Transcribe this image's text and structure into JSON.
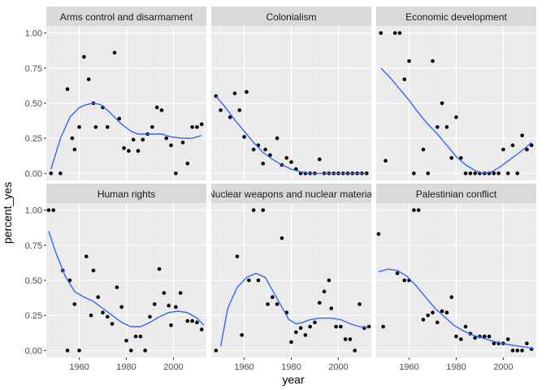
{
  "chart_data": {
    "type": "scatter",
    "xlabel": "year",
    "ylabel": "percent_yes",
    "xlim": [
      1946,
      2014
    ],
    "ylim": [
      -0.05,
      1.05
    ],
    "x_ticks": [
      1960,
      1980,
      2000
    ],
    "x_tick_labels": [
      "1960",
      "1980",
      "2000"
    ],
    "y_ticks": [
      0,
      0.25,
      0.5,
      0.75,
      1
    ],
    "y_tick_labels": [
      "0.00",
      "0.25",
      "0.50",
      "0.75",
      "1.00"
    ],
    "grid": true,
    "layout": {
      "columns": 3,
      "rows": 2
    },
    "colors": {
      "panel_bg": "#ebebeb",
      "strip_bg": "#d9d9d9",
      "grid_major": "#ffffff",
      "grid_minor": "#f3f3f3",
      "point": "#000000",
      "smooth_line": "#3366ff",
      "tick_text": "#4d4d4d"
    },
    "panels": [
      {
        "name": "Arms control and disarmament",
        "points": [
          [
            1948,
            0.0
          ],
          [
            1952,
            0.0
          ],
          [
            1955,
            0.6
          ],
          [
            1957,
            0.25
          ],
          [
            1958,
            0.17
          ],
          [
            1960,
            0.33
          ],
          [
            1962,
            0.83
          ],
          [
            1964,
            0.67
          ],
          [
            1966,
            0.5
          ],
          [
            1967,
            0.33
          ],
          [
            1970,
            0.47
          ],
          [
            1972,
            0.33
          ],
          [
            1975,
            0.86
          ],
          [
            1977,
            0.39
          ],
          [
            1979,
            0.18
          ],
          [
            1981,
            0.16
          ],
          [
            1983,
            0.24
          ],
          [
            1985,
            0.16
          ],
          [
            1987,
            0.24
          ],
          [
            1989,
            0.28
          ],
          [
            1991,
            0.33
          ],
          [
            1993,
            0.47
          ],
          [
            1995,
            0.45
          ],
          [
            1997,
            0.25
          ],
          [
            1999,
            0.2
          ],
          [
            2001,
            0.0
          ],
          [
            2004,
            0.22
          ],
          [
            2006,
            0.07
          ],
          [
            2008,
            0.33
          ],
          [
            2010,
            0.33
          ],
          [
            2012,
            0.35
          ]
        ],
        "smooth": [
          [
            1948,
            0.03
          ],
          [
            1952,
            0.25
          ],
          [
            1956,
            0.4
          ],
          [
            1960,
            0.47
          ],
          [
            1963,
            0.49
          ],
          [
            1966,
            0.5
          ],
          [
            1969,
            0.49
          ],
          [
            1972,
            0.45
          ],
          [
            1975,
            0.4
          ],
          [
            1978,
            0.35
          ],
          [
            1982,
            0.3
          ],
          [
            1985,
            0.28
          ],
          [
            1990,
            0.28
          ],
          [
            1995,
            0.28
          ],
          [
            1999,
            0.26
          ],
          [
            2004,
            0.25
          ],
          [
            2008,
            0.25
          ],
          [
            2012,
            0.27
          ]
        ]
      },
      {
        "name": "Colonialism",
        "points": [
          [
            1948,
            0.55
          ],
          [
            1950,
            0.45
          ],
          [
            1954,
            0.4
          ],
          [
            1956,
            0.57
          ],
          [
            1958,
            0.45
          ],
          [
            1960,
            0.26
          ],
          [
            1961,
            0.58
          ],
          [
            1964,
            0.17
          ],
          [
            1966,
            0.2
          ],
          [
            1968,
            0.07
          ],
          [
            1969,
            0.17
          ],
          [
            1971,
            0.13
          ],
          [
            1974,
            0.25
          ],
          [
            1976,
            0.06
          ],
          [
            1978,
            0.11
          ],
          [
            1980,
            0.08
          ],
          [
            1982,
            0.03
          ],
          [
            1984,
            0.0
          ],
          [
            1986,
            0.0
          ],
          [
            1988,
            0.0
          ],
          [
            1990,
            0.0
          ],
          [
            1992,
            0.1
          ],
          [
            1994,
            0.0
          ],
          [
            1996,
            0.0
          ],
          [
            1998,
            0.0
          ],
          [
            2000,
            0.0
          ],
          [
            2002,
            0.0
          ],
          [
            2004,
            0.0
          ],
          [
            2006,
            0.0
          ],
          [
            2008,
            0.0
          ],
          [
            2010,
            0.0
          ],
          [
            2012,
            0.0
          ]
        ],
        "smooth": [
          [
            1948,
            0.55
          ],
          [
            1952,
            0.47
          ],
          [
            1956,
            0.38
          ],
          [
            1960,
            0.3
          ],
          [
            1964,
            0.22
          ],
          [
            1968,
            0.15
          ],
          [
            1972,
            0.1
          ],
          [
            1976,
            0.06
          ],
          [
            1980,
            0.03
          ],
          [
            1984,
            0.01
          ],
          [
            1988,
            0.0
          ],
          [
            1994,
            0.0
          ],
          [
            2000,
            0.0
          ],
          [
            2006,
            0.0
          ],
          [
            2012,
            0.0
          ]
        ]
      },
      {
        "name": "Economic development",
        "points": [
          [
            1948,
            1.0
          ],
          [
            1950,
            0.09
          ],
          [
            1954,
            1.0
          ],
          [
            1956,
            1.0
          ],
          [
            1958,
            0.67
          ],
          [
            1960,
            0.8
          ],
          [
            1962,
            0.0
          ],
          [
            1966,
            0.17
          ],
          [
            1968,
            0.0
          ],
          [
            1970,
            0.8
          ],
          [
            1972,
            0.33
          ],
          [
            1974,
            0.5
          ],
          [
            1976,
            0.33
          ],
          [
            1978,
            0.11
          ],
          [
            1980,
            0.4
          ],
          [
            1982,
            0.11
          ],
          [
            1984,
            0.0
          ],
          [
            1986,
            0.0
          ],
          [
            1988,
            0.0
          ],
          [
            1990,
            0.0
          ],
          [
            1992,
            0.0
          ],
          [
            1994,
            0.0
          ],
          [
            1996,
            0.0
          ],
          [
            1998,
            0.0
          ],
          [
            2000,
            0.17
          ],
          [
            2002,
            0.0
          ],
          [
            2004,
            0.2
          ],
          [
            2006,
            0.0
          ],
          [
            2008,
            0.27
          ],
          [
            2010,
            0.17
          ],
          [
            2012,
            0.2
          ]
        ],
        "smooth": [
          [
            1948,
            0.75
          ],
          [
            1952,
            0.68
          ],
          [
            1956,
            0.6
          ],
          [
            1960,
            0.52
          ],
          [
            1964,
            0.43
          ],
          [
            1968,
            0.35
          ],
          [
            1972,
            0.28
          ],
          [
            1976,
            0.2
          ],
          [
            1980,
            0.12
          ],
          [
            1984,
            0.06
          ],
          [
            1988,
            0.02
          ],
          [
            1991,
            0.0
          ],
          [
            1995,
            0.01
          ],
          [
            1999,
            0.05
          ],
          [
            2003,
            0.1
          ],
          [
            2007,
            0.15
          ],
          [
            2010,
            0.19
          ],
          [
            2012,
            0.22
          ]
        ]
      },
      {
        "name": "Human rights",
        "points": [
          [
            1947,
            1.0
          ],
          [
            1949,
            1.0
          ],
          [
            1953,
            0.57
          ],
          [
            1955,
            0.0
          ],
          [
            1956,
            0.5
          ],
          [
            1958,
            0.33
          ],
          [
            1960,
            0.0
          ],
          [
            1963,
            0.67
          ],
          [
            1965,
            0.25
          ],
          [
            1966,
            0.57
          ],
          [
            1968,
            0.38
          ],
          [
            1970,
            0.27
          ],
          [
            1972,
            0.24
          ],
          [
            1974,
            0.19
          ],
          [
            1976,
            0.45
          ],
          [
            1978,
            0.31
          ],
          [
            1980,
            0.07
          ],
          [
            1982,
            0.0
          ],
          [
            1984,
            0.1
          ],
          [
            1986,
            0.1
          ],
          [
            1988,
            0.0
          ],
          [
            1990,
            0.24
          ],
          [
            1992,
            0.33
          ],
          [
            1994,
            0.58
          ],
          [
            1996,
            0.41
          ],
          [
            1998,
            0.32
          ],
          [
            1999,
            0.18
          ],
          [
            2001,
            0.31
          ],
          [
            2003,
            0.41
          ],
          [
            2006,
            0.21
          ],
          [
            2008,
            0.21
          ],
          [
            2010,
            0.2
          ],
          [
            2012,
            0.15
          ]
        ],
        "smooth": [
          [
            1947,
            0.85
          ],
          [
            1950,
            0.7
          ],
          [
            1954,
            0.53
          ],
          [
            1958,
            0.42
          ],
          [
            1962,
            0.38
          ],
          [
            1966,
            0.35
          ],
          [
            1970,
            0.3
          ],
          [
            1974,
            0.25
          ],
          [
            1978,
            0.2
          ],
          [
            1982,
            0.17
          ],
          [
            1986,
            0.17
          ],
          [
            1990,
            0.2
          ],
          [
            1994,
            0.24
          ],
          [
            1998,
            0.27
          ],
          [
            2002,
            0.28
          ],
          [
            2006,
            0.27
          ],
          [
            2010,
            0.23
          ],
          [
            2013,
            0.18
          ]
        ]
      },
      {
        "name": "Nuclear weapons and nuclear material",
        "points": [
          [
            1948,
            0.0
          ],
          [
            1957,
            0.67
          ],
          [
            1959,
            0.11
          ],
          [
            1962,
            0.5
          ],
          [
            1964,
            1.0
          ],
          [
            1966,
            0.5
          ],
          [
            1968,
            1.0
          ],
          [
            1970,
            0.33
          ],
          [
            1972,
            0.38
          ],
          [
            1974,
            0.33
          ],
          [
            1976,
            0.8
          ],
          [
            1978,
            0.27
          ],
          [
            1980,
            0.06
          ],
          [
            1982,
            0.13
          ],
          [
            1984,
            0.16
          ],
          [
            1986,
            0.11
          ],
          [
            1988,
            0.17
          ],
          [
            1990,
            0.2
          ],
          [
            1992,
            0.34
          ],
          [
            1994,
            0.42
          ],
          [
            1996,
            0.5
          ],
          [
            1997,
            0.3
          ],
          [
            1999,
            0.17
          ],
          [
            2001,
            0.17
          ],
          [
            2003,
            0.08
          ],
          [
            2005,
            0.08
          ],
          [
            2007,
            0.0
          ],
          [
            2009,
            0.33
          ],
          [
            2011,
            0.16
          ],
          [
            2013,
            0.17
          ]
        ],
        "smooth": [
          [
            1950,
            0.03
          ],
          [
            1953,
            0.3
          ],
          [
            1957,
            0.45
          ],
          [
            1961,
            0.52
          ],
          [
            1965,
            0.55
          ],
          [
            1969,
            0.52
          ],
          [
            1973,
            0.4
          ],
          [
            1976,
            0.31
          ],
          [
            1979,
            0.22
          ],
          [
            1982,
            0.19
          ],
          [
            1985,
            0.2
          ],
          [
            1988,
            0.22
          ],
          [
            1992,
            0.23
          ],
          [
            1997,
            0.23
          ],
          [
            2001,
            0.22
          ],
          [
            2005,
            0.19
          ],
          [
            2009,
            0.17
          ],
          [
            2013,
            0.16
          ]
        ]
      },
      {
        "name": "Palestinian conflict",
        "points": [
          [
            1947,
            0.83
          ],
          [
            1949,
            0.17
          ],
          [
            1955,
            0.55
          ],
          [
            1958,
            0.5
          ],
          [
            1960,
            0.5
          ],
          [
            1962,
            1.0
          ],
          [
            1964,
            1.0
          ],
          [
            1966,
            0.22
          ],
          [
            1968,
            0.25
          ],
          [
            1970,
            0.27
          ],
          [
            1972,
            0.2
          ],
          [
            1974,
            0.28
          ],
          [
            1976,
            0.27
          ],
          [
            1978,
            0.38
          ],
          [
            1980,
            0.1
          ],
          [
            1982,
            0.08
          ],
          [
            1984,
            0.17
          ],
          [
            1986,
            0.12
          ],
          [
            1988,
            0.09
          ],
          [
            1990,
            0.1
          ],
          [
            1992,
            0.1
          ],
          [
            1994,
            0.1
          ],
          [
            1996,
            0.05
          ],
          [
            1998,
            0.05
          ],
          [
            2000,
            0.05
          ],
          [
            2002,
            0.08
          ],
          [
            2004,
            0.0
          ],
          [
            2006,
            0.0
          ],
          [
            2008,
            0.0
          ],
          [
            2010,
            0.05
          ],
          [
            2012,
            0.01
          ]
        ],
        "smooth": [
          [
            1947,
            0.56
          ],
          [
            1951,
            0.58
          ],
          [
            1955,
            0.57
          ],
          [
            1959,
            0.53
          ],
          [
            1963,
            0.46
          ],
          [
            1967,
            0.38
          ],
          [
            1971,
            0.3
          ],
          [
            1975,
            0.24
          ],
          [
            1979,
            0.18
          ],
          [
            1983,
            0.14
          ],
          [
            1987,
            0.11
          ],
          [
            1991,
            0.09
          ],
          [
            1995,
            0.07
          ],
          [
            1999,
            0.05
          ],
          [
            2003,
            0.04
          ],
          [
            2007,
            0.03
          ],
          [
            2011,
            0.02
          ],
          [
            2013,
            0.01
          ]
        ]
      }
    ]
  }
}
